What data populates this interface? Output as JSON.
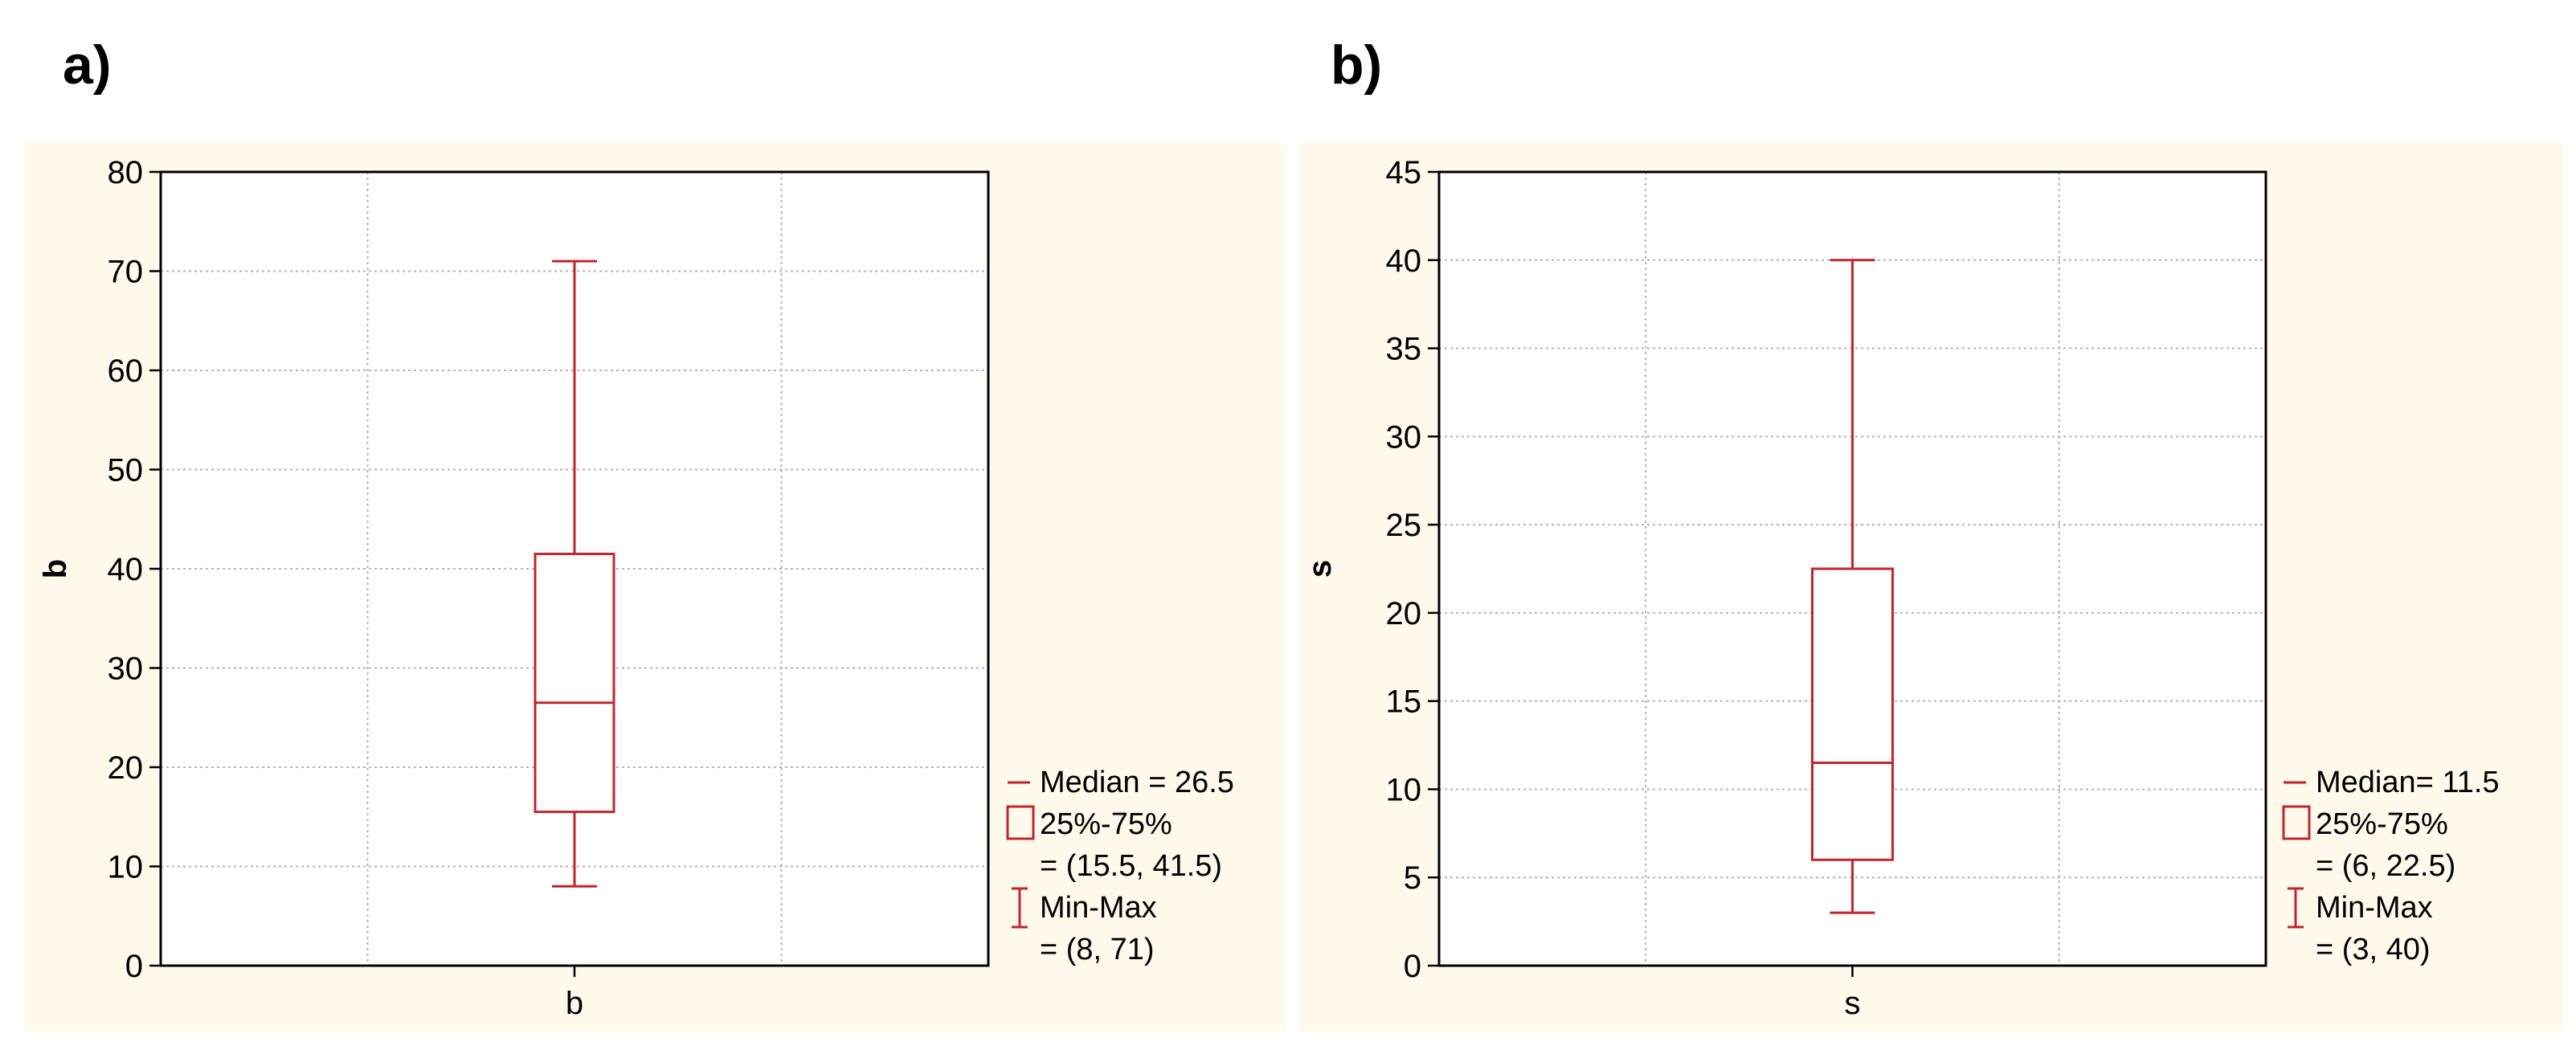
{
  "figure": {
    "colors": {
      "box": "#c0262d",
      "grid": "#b4b4b4",
      "panel_bg": "#fffaeb",
      "axis": "#000000"
    }
  },
  "chart_data": [
    {
      "type": "box",
      "panel_label": "a)",
      "xlabel": "b",
      "ylabel": "b",
      "categories": [
        "b"
      ],
      "ylim": [
        0,
        80
      ],
      "yticks": [
        0,
        10,
        20,
        30,
        40,
        50,
        60,
        70,
        80
      ],
      "grid": true,
      "box": {
        "min": 8,
        "q1": 15.5,
        "median": 26.5,
        "q3": 41.5,
        "max": 71
      },
      "legend": {
        "placement": "bottom-right",
        "median_label": "Median = 26.5",
        "iqr_label": "25%-75%",
        "iqr_value": "= (15.5, 41.5)",
        "range_label": "Min-Max",
        "range_value": "= (8, 71)"
      }
    },
    {
      "type": "box",
      "panel_label": "b)",
      "xlabel": "s",
      "ylabel": "s",
      "categories": [
        "s"
      ],
      "ylim": [
        0,
        45
      ],
      "yticks": [
        0,
        5,
        10,
        15,
        20,
        25,
        30,
        35,
        40,
        45
      ],
      "grid": true,
      "box": {
        "min": 3,
        "q1": 6,
        "median": 11.5,
        "q3": 22.5,
        "max": 40
      },
      "legend": {
        "placement": "bottom-right",
        "median_label": "Median= 11.5",
        "iqr_label": "25%-75%",
        "iqr_value": "= (6, 22.5)",
        "range_label": "Min-Max",
        "range_value": "= (3, 40)"
      }
    }
  ]
}
